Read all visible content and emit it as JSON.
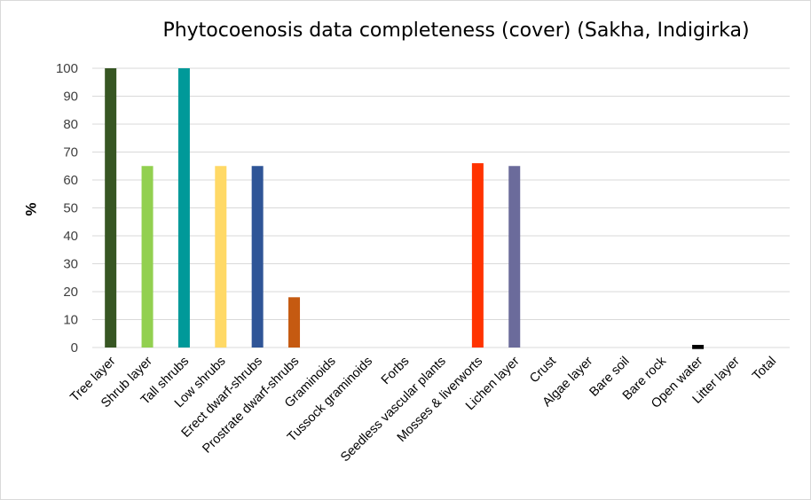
{
  "chart_data": {
    "type": "bar",
    "title": "Phytocoenosis data completeness (cover) (Sakha, Indigirka)",
    "xlabel": "",
    "ylabel": "%",
    "ylim": [
      0,
      100
    ],
    "yticks": [
      0,
      10,
      20,
      30,
      40,
      50,
      60,
      70,
      80,
      90,
      100
    ],
    "grid": true,
    "legend": "none",
    "categories": [
      "Tree layer",
      "Shrub layer",
      "Tall shrubs",
      "Low shrubs",
      "Erect dwarf-shrubs",
      "Prostrate dwarf-shrubs",
      "Graminoids",
      "Tussock graminoids",
      "Forbs",
      "Seedless vascular plants",
      "Mosses & liverworts",
      "Lichen layer",
      "Crust",
      "Algae layer",
      "Bare soil",
      "Bare rock",
      "Open water",
      "Litter layer",
      "Total"
    ],
    "values": [
      100,
      65,
      100,
      65,
      65,
      18,
      0,
      0,
      0,
      0,
      66,
      65,
      0,
      0,
      0,
      0,
      1.5,
      0,
      0
    ],
    "colors": [
      "#375623",
      "#92d050",
      "#009999",
      "#ffd966",
      "#2f5597",
      "#c55a11",
      "#808080",
      "#808080",
      "#808080",
      "#808080",
      "#ff3300",
      "#6b6b9b",
      "#808080",
      "#808080",
      "#808080",
      "#808080",
      "#000000",
      "#808080",
      "#808080"
    ]
  }
}
